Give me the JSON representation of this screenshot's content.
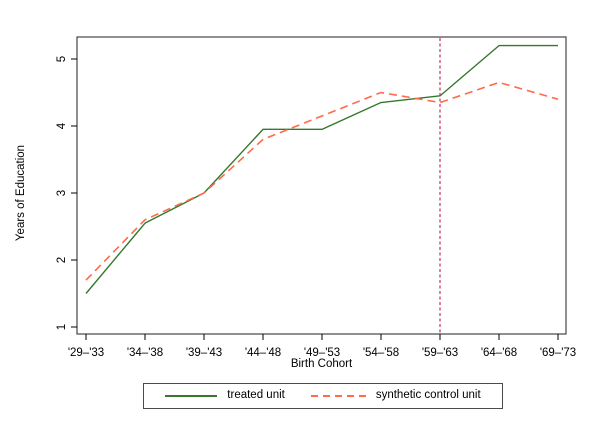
{
  "chart_data": {
    "type": "line",
    "title": "",
    "xlabel": "Birth Cohort",
    "ylabel": "Years of Education",
    "categories": [
      "'29–'33",
      "'34–'38",
      "'39–'43",
      "'44–'48",
      "'49–'53",
      "'54–'58",
      "'59–'63",
      "'64–'68",
      "'69–'73"
    ],
    "y_ticks": [
      1,
      2,
      3,
      4,
      5
    ],
    "ylim": [
      0.9,
      5.35
    ],
    "grid": false,
    "legend_position": "bottom",
    "series": [
      {
        "name": "treated unit",
        "style": "solid",
        "color": "#35782c",
        "values": [
          1.5,
          2.55,
          3.0,
          3.95,
          3.95,
          4.35,
          4.45,
          5.2,
          5.2
        ]
      },
      {
        "name": "synthetic control unit",
        "style": "dashed",
        "color": "#ff6a4a",
        "values": [
          1.7,
          2.6,
          3.0,
          3.8,
          4.15,
          4.5,
          4.35,
          4.65,
          4.4
        ]
      }
    ],
    "reference_line": {
      "axis": "x",
      "category": "'59–'63",
      "index": 6,
      "style": "dashed",
      "color": "#c23456"
    }
  },
  "colors": {
    "frame": "#454545",
    "tick": "#000000",
    "background": "#ffffff"
  }
}
